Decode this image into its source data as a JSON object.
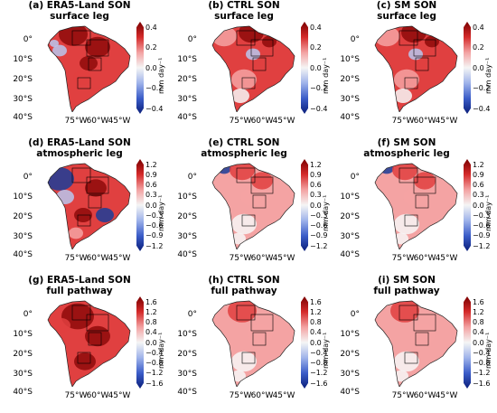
{
  "colors": {
    "dark_blue": "#1b3d99",
    "light_blue": "#b8c7ee",
    "white": "#f7f7f7",
    "light_red": "#f4a3a3",
    "red": "#e04040",
    "dark_red": "#8e0a0a"
  },
  "latitude_labels": [
    "0°",
    "10°S",
    "20°S",
    "30°S",
    "40°S"
  ],
  "longitude_labels": [
    "75°W",
    "60°W",
    "45°W"
  ],
  "colorbar_unit": "mm day⁻¹",
  "scales": {
    "surface": [
      "0.4",
      "0.2",
      "0.0",
      "−0.2",
      "−0.4"
    ],
    "atmospheric": [
      "1.2",
      "0.9",
      "0.6",
      "0.3",
      "0.0",
      "−0.3",
      "−0.6",
      "−0.9",
      "−1.2"
    ],
    "full": [
      "1.6",
      "1.2",
      "0.8",
      "0.4",
      "0.0",
      "−0.4",
      "−0.8",
      "−1.2",
      "−1.6"
    ]
  },
  "panels": [
    {
      "title_line1": "(a) ERA5-Land SON",
      "title_line2": "surface leg",
      "scale": "surface",
      "shade": "era_surface"
    },
    {
      "title_line1": "(b) CTRL SON",
      "title_line2": "surface leg",
      "scale": "surface",
      "shade": "model_surface"
    },
    {
      "title_line1": "(c) SM SON",
      "title_line2": "surface leg",
      "scale": "surface",
      "shade": "model_surface"
    },
    {
      "title_line1": "(d) ERA5-Land SON",
      "title_line2": "atmospheric leg",
      "scale": "atmospheric",
      "shade": "era_atmos"
    },
    {
      "title_line1": "(e) CTRL SON",
      "title_line2": "atmospheric leg",
      "scale": "atmospheric",
      "shade": "model_atmos"
    },
    {
      "title_line1": "(f) SM SON",
      "title_line2": "atmospheric leg",
      "scale": "atmospheric",
      "shade": "model_atmos"
    },
    {
      "title_line1": "(g) ERA5-Land SON",
      "title_line2": "full pathway",
      "scale": "full",
      "shade": "era_full"
    },
    {
      "title_line1": "(h) CTRL SON",
      "title_line2": "full pathway",
      "scale": "full",
      "shade": "model_full"
    },
    {
      "title_line1": "(i) SM SON",
      "title_line2": "full pathway",
      "scale": "full",
      "shade": "model_full"
    }
  ]
}
